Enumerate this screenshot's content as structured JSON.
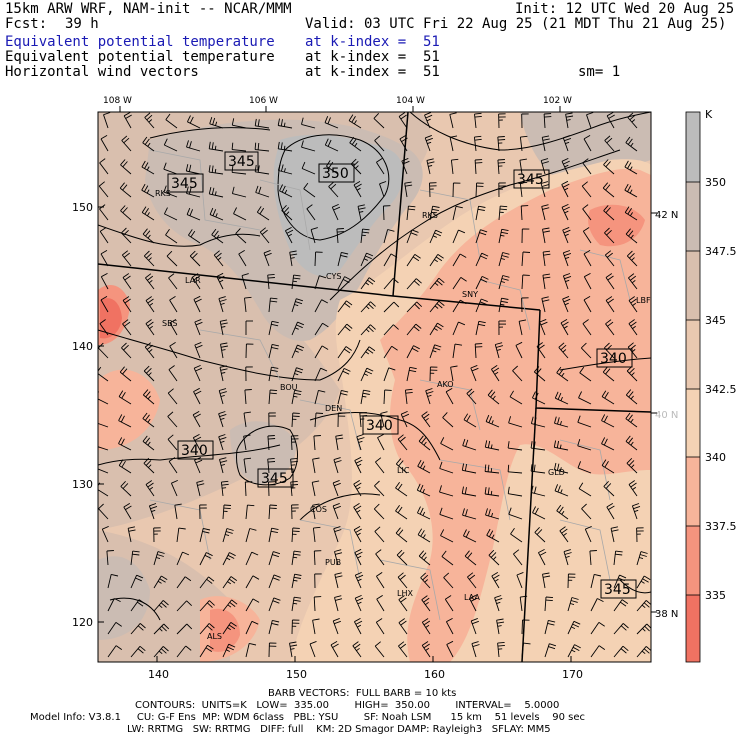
{
  "header": {
    "model": "15km ARW WRF, NAM-init -- NCAR/MMM",
    "init": "Init: 12 UTC Wed 20 Aug 25",
    "fcst_label": "Fcst:",
    "fcst_value": "39 h",
    "valid": "Valid: 03 UTC Fri 22 Aug 25 (21 MDT Thu 21 Aug 25)",
    "fields": [
      {
        "name": "Equivalent potential temperature",
        "level": "at k-index =  51",
        "color": "#1a1ab4"
      },
      {
        "name": "Equivalent potential temperature",
        "level": "at k-index =  51",
        "color": "#000000"
      },
      {
        "name": "Horizontal wind vectors",
        "level": "at k-index =  51",
        "color": "#000000"
      }
    ],
    "sm": "sm= 1"
  },
  "map": {
    "lon_labels": [
      "108 W",
      "106 W",
      "104 W",
      "102 W"
    ],
    "lat_labels": [
      "42 N",
      "40 N",
      "38 N"
    ],
    "grid_x_labels": [
      "140",
      "150",
      "160",
      "170"
    ],
    "grid_y_labels": [
      "150",
      "140",
      "130",
      "120"
    ],
    "contour_labels": [
      "345",
      "345",
      "350",
      "345",
      "340",
      "340",
      "340",
      "345",
      "345"
    ],
    "stations": [
      "RKS",
      "RKS",
      "CYS",
      "SNY",
      "LBF",
      "SBS",
      "BOU",
      "DEN",
      "AKO",
      "LIC",
      "GLD",
      "COS",
      "PUB",
      "LHX",
      "LAA",
      "ALS",
      "LAR"
    ]
  },
  "colorbar": {
    "unit": "K",
    "labels": [
      "350",
      "347.5",
      "345",
      "342.5",
      "340",
      "337.5",
      "335"
    ],
    "colors": [
      "#bcbcbc",
      "#cbbcb3",
      "#d9bfae",
      "#e9c8b0",
      "#f4d2b4",
      "#f7b49a",
      "#f5947e",
      "#f07262"
    ]
  },
  "footer": {
    "barb": "BARB VECTORS:  FULL BARB = 10 kts",
    "contours": "CONTOURS:  UNITS=K   LOW=  335.00        HIGH=  350.00        INTERVAL=    5.0000",
    "model_info": "Model Info: V3.8.1     CU: G-F Ens  MP: WDM 6class   PBL: YSU        SF: Noah LSM      15 km    51 levels    90 sec",
    "model_info2": "LW: RRTMG   SW: RRTMG   DIFF: full    KM: 2D Smagor DAMP: Rayleigh3   SFLAY: MM5"
  }
}
